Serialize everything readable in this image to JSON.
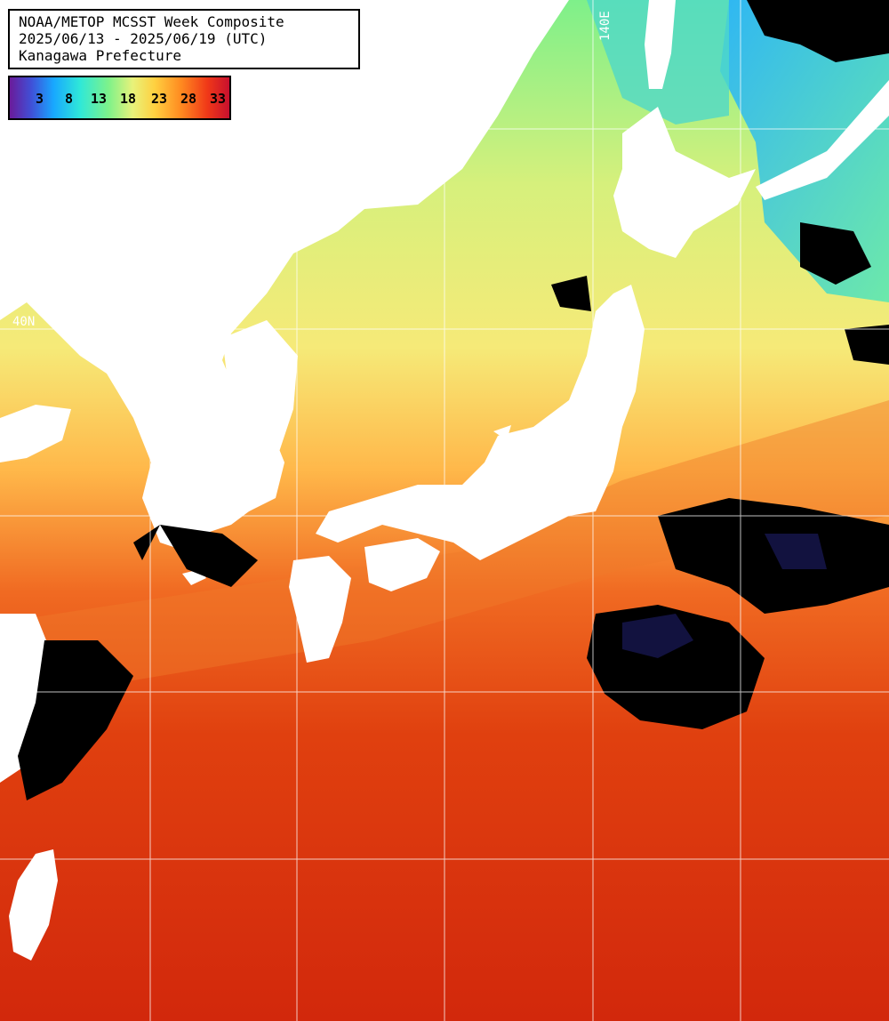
{
  "title": {
    "line1": "NOAA/METOP MCSST Week Composite",
    "line2": "2025/06/13 - 2025/06/19 (UTC)",
    "line3": "Kanagawa Prefecture"
  },
  "legend": {
    "ticks": [
      "3",
      "8",
      "13",
      "18",
      "23",
      "28",
      "33"
    ]
  },
  "grid_labels": {
    "lon": "140E",
    "lat": "40N"
  },
  "colors": {
    "land": "#ffffff",
    "cloud": "#000000",
    "cold": "#2bb8ff",
    "cool": "#7ef08a",
    "mild": "#f4ef7a",
    "warm": "#ffb040",
    "hot": "#e85018",
    "hottest": "#d2280c"
  }
}
